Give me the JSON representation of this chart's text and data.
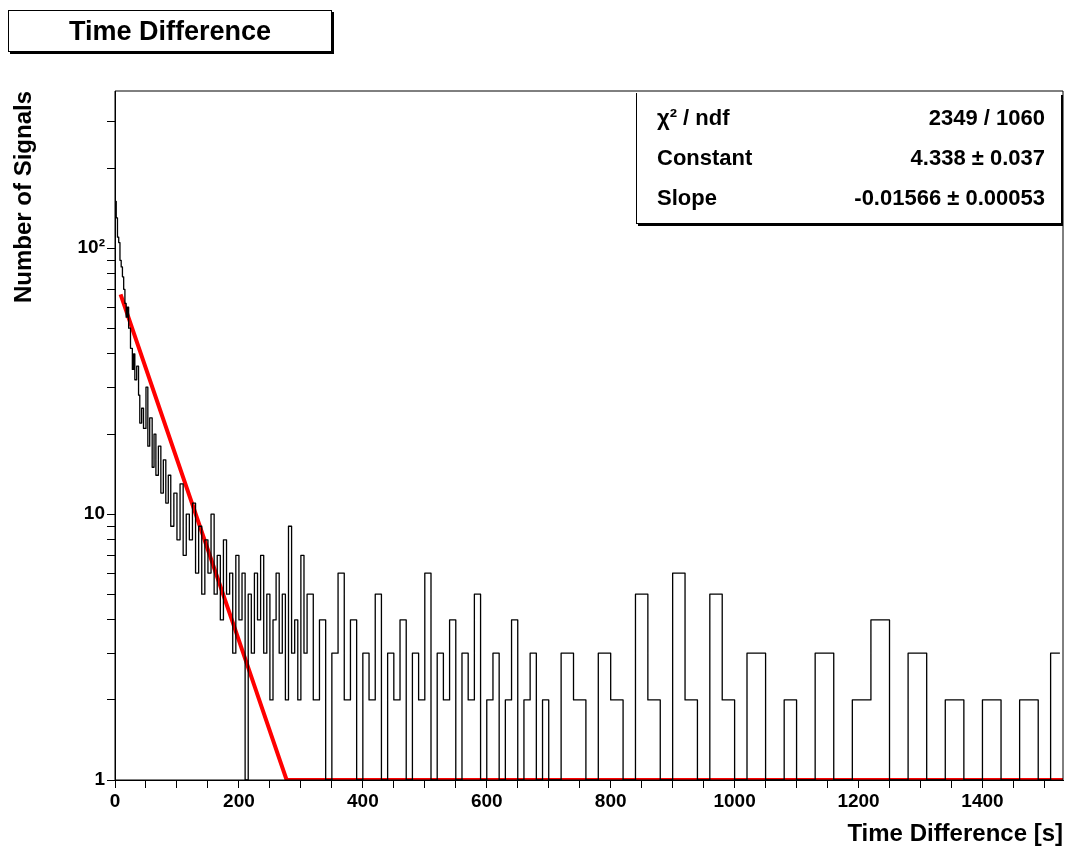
{
  "chart_data": {
    "type": "step",
    "title": "Time Difference",
    "xlabel": "Time Difference [s]",
    "ylabel": "Number of Signals",
    "log": "y",
    "grid": false,
    "legend": false,
    "marker": "none",
    "xlim": [
      0,
      1530
    ],
    "ylim": [
      1,
      390
    ],
    "xticks": [
      0,
      {
        "value": 50,
        "label": null
      },
      {
        "value": 100,
        "label": null
      },
      {
        "value": 150,
        "label": null
      },
      200,
      {
        "value": 250,
        "label": null
      },
      {
        "value": 300,
        "label": null
      },
      {
        "value": 350,
        "label": null
      },
      400,
      {
        "value": 450,
        "label": null
      },
      {
        "value": 500,
        "label": null
      },
      {
        "value": 550,
        "label": null
      },
      600,
      {
        "value": 650,
        "label": null
      },
      {
        "value": 700,
        "label": null
      },
      {
        "value": 750,
        "label": null
      },
      800,
      {
        "value": 850,
        "label": null
      },
      {
        "value": 900,
        "label": null
      },
      {
        "value": 950,
        "label": null
      },
      1000,
      {
        "value": 1050,
        "label": null
      },
      {
        "value": 1100,
        "label": null
      },
      {
        "value": 1150,
        "label": null
      },
      1200,
      {
        "value": 1250,
        "label": null
      },
      {
        "value": 1300,
        "label": null
      },
      {
        "value": 1350,
        "label": null
      },
      1400,
      {
        "value": 1450,
        "label": null
      },
      {
        "value": 1500,
        "label": null
      }
    ],
    "yticks": [
      1,
      {
        "value": 2,
        "label": null
      },
      {
        "value": 3,
        "label": null
      },
      {
        "value": 4,
        "label": null
      },
      {
        "value": 5,
        "label": null
      },
      {
        "value": 6,
        "label": null
      },
      {
        "value": 7,
        "label": null
      },
      {
        "value": 8,
        "label": null
      },
      {
        "value": 9,
        "label": null
      },
      10,
      {
        "value": 20,
        "label": null
      },
      {
        "value": 30,
        "label": null
      },
      {
        "value": 40,
        "label": null
      },
      {
        "value": 50,
        "label": null
      },
      {
        "value": 60,
        "label": null
      },
      {
        "value": 70,
        "label": null
      },
      {
        "value": 80,
        "label": null
      },
      {
        "value": 90,
        "label": null
      },
      {
        "value": 100,
        "label": "10²"
      },
      {
        "value": 200,
        "label": null
      },
      {
        "value": 300,
        "label": null
      }
    ],
    "annotations": [
      "χ² / ndf",
      "2349 / 1060",
      "Constant",
      "4.338 ± 0.037",
      "Slope",
      "-0.01566 ± 0.00053"
    ],
    "series": [
      {
        "type": "step",
        "color": "#000000",
        "x": [
          0,
          2,
          4,
          6,
          8,
          10,
          12,
          14,
          16,
          18,
          20,
          22,
          25,
          28,
          30,
          32,
          35,
          38,
          40,
          43,
          46,
          50,
          53,
          56,
          60,
          63,
          66,
          70,
          74,
          78,
          82,
          86,
          90,
          95,
          100,
          105,
          110,
          115,
          120,
          125,
          130,
          135,
          140,
          145,
          150,
          155,
          160,
          165,
          170,
          175,
          180,
          185,
          190,
          195,
          200,
          205,
          210,
          215,
          220,
          225,
          230,
          235,
          240,
          245,
          250,
          255,
          260,
          265,
          270,
          275,
          280,
          285,
          290,
          295,
          300,
          305,
          310,
          320,
          330,
          340,
          350,
          360,
          370,
          380,
          390,
          400,
          410,
          420,
          430,
          440,
          450,
          460,
          470,
          480,
          490,
          500,
          510,
          520,
          530,
          540,
          550,
          560,
          570,
          580,
          590,
          600,
          610,
          620,
          630,
          640,
          650,
          660,
          670,
          680,
          690,
          700,
          720,
          740,
          760,
          780,
          800,
          820,
          840,
          860,
          880,
          900,
          920,
          940,
          960,
          980,
          1000,
          1020,
          1050,
          1080,
          1100,
          1130,
          1160,
          1190,
          1220,
          1250,
          1280,
          1310,
          1340,
          1370,
          1400,
          1430,
          1460,
          1490,
          1510,
          1525
        ],
        "values": [
          210,
          150,
          130,
          110,
          105,
          90,
          85,
          78,
          70,
          62,
          55,
          60,
          50,
          42,
          35,
          40,
          32,
          36,
          28,
          22,
          25,
          21,
          30,
          18,
          23,
          15,
          20,
          14,
          18,
          12,
          16,
          11,
          14,
          9,
          12,
          8,
          13,
          7,
          10,
          8,
          11,
          6,
          9,
          5,
          8,
          6,
          10,
          5,
          7,
          4,
          8,
          5,
          6,
          3,
          7,
          4,
          6,
          1,
          5,
          3,
          6,
          4,
          7,
          3,
          5,
          2,
          4,
          6,
          3,
          5,
          2,
          9,
          3,
          4,
          2,
          7,
          3,
          5,
          2,
          4,
          1,
          3,
          6,
          2,
          4,
          1,
          3,
          2,
          5,
          1,
          3,
          2,
          4,
          1,
          3,
          2,
          6,
          1,
          3,
          2,
          4,
          1,
          3,
          2,
          5,
          1,
          2,
          3,
          1,
          2,
          4,
          1,
          2,
          3,
          1,
          2,
          1,
          3,
          2,
          1,
          3,
          2,
          1,
          5,
          2,
          1,
          6,
          2,
          1,
          5,
          2,
          1,
          3,
          1,
          2,
          1,
          3,
          1,
          2,
          4,
          1,
          3,
          1,
          2,
          1,
          2,
          1,
          2,
          1,
          3
        ]
      },
      {
        "type": "line",
        "color": "#ff0000",
        "x": [
          9,
          277,
          1530
        ],
        "values": [
          67,
          1,
          1
        ]
      }
    ]
  }
}
